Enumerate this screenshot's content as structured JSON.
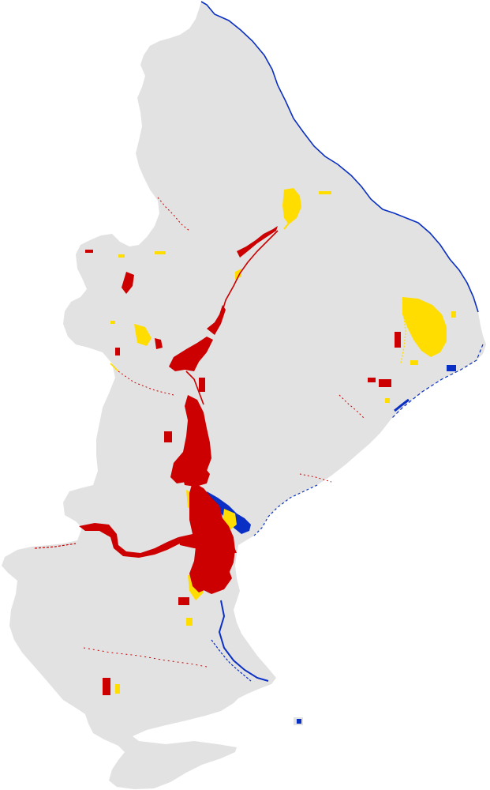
{
  "map": {
    "classes": [
      {
        "key": "land",
        "color": "#e2e2e2"
      },
      {
        "key": "permanent_water",
        "color": "#0a2fc4"
      },
      {
        "key": "flood_class_a",
        "color": "#cc0000"
      },
      {
        "key": "flood_class_b",
        "color": "#ffdd00"
      }
    ]
  }
}
